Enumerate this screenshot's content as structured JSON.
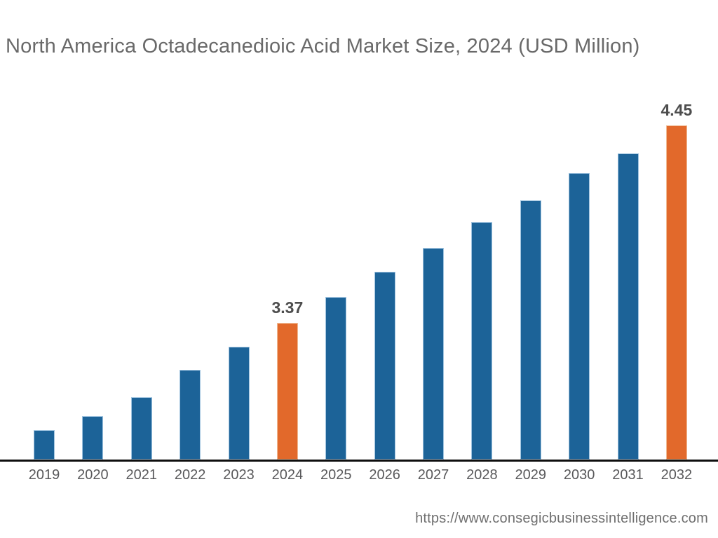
{
  "page": {
    "background": "#ffffff"
  },
  "header": {
    "title": "North America Octadecanedioic Acid Market Size, 2024 (USD Million)"
  },
  "footer": {
    "url": "https://www.consegicbusinessintelligence.com"
  },
  "chart_data": {
    "type": "bar",
    "title": "North America Octadecanedioic Acid Market Size, 2024 (USD Million)",
    "xlabel": "",
    "ylabel": "",
    "unit": "USD Million",
    "categories": [
      "2019",
      "2020",
      "2021",
      "2022",
      "2023",
      "2024",
      "2025",
      "2026",
      "2027",
      "2028",
      "2029",
      "2030",
      "2031",
      "2032"
    ],
    "values": [
      2.78,
      2.86,
      2.96,
      3.11,
      3.24,
      3.37,
      3.51,
      3.65,
      3.78,
      3.92,
      4.04,
      4.19,
      4.3,
      4.45
    ],
    "data_labels": [
      "",
      "",
      "",
      "",
      "",
      "3.37",
      "",
      "",
      "",
      "",
      "",
      "",
      "",
      "4.45"
    ],
    "highlighted": [
      false,
      false,
      false,
      false,
      false,
      true,
      false,
      false,
      false,
      false,
      false,
      false,
      false,
      true
    ],
    "labeled_points": [
      {
        "category": "2024",
        "value": 3.37,
        "label": "3.37"
      },
      {
        "category": "2032",
        "value": 4.45,
        "label": "4.45"
      }
    ],
    "ylim": [
      2.62,
      4.54
    ],
    "y_axis_visible": false,
    "grid": false,
    "legend": false,
    "colors": {
      "bar": "#1C6398",
      "bar_edge": "#9FC3DF",
      "highlight": "#E2692B",
      "highlight_edge": "#F0BC96",
      "axis_line": "#0E0E0E",
      "title_text": "#696969",
      "label_text": "#4D4D4D",
      "tick_text": "#59595B"
    }
  }
}
